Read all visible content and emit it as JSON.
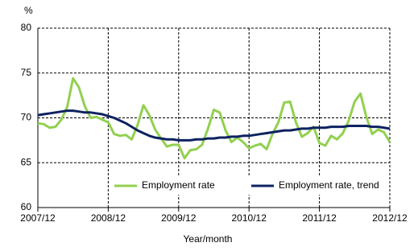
{
  "chart_data": {
    "type": "line",
    "y_label": "%",
    "x_label": "Year/month",
    "categories": [
      "2007/12",
      null,
      null,
      null,
      null,
      null,
      null,
      null,
      null,
      null,
      null,
      null,
      "2008/12",
      null,
      null,
      null,
      null,
      null,
      null,
      null,
      null,
      null,
      null,
      null,
      "2009/12",
      null,
      null,
      null,
      null,
      null,
      null,
      null,
      null,
      null,
      null,
      null,
      "2010/12",
      null,
      null,
      null,
      null,
      null,
      null,
      null,
      null,
      null,
      null,
      null,
      "2011/12",
      null,
      null,
      null,
      null,
      null,
      null,
      null,
      null,
      null,
      null,
      null,
      "2012/12"
    ],
    "series": [
      {
        "name": "Employment rate",
        "color": "#92d050",
        "values": [
          69.4,
          69.3,
          68.9,
          69.0,
          69.8,
          71.2,
          74.4,
          73.4,
          71.3,
          70.0,
          70.1,
          69.8,
          69.5,
          68.2,
          68.0,
          68.1,
          67.6,
          69.2,
          71.4,
          70.3,
          68.7,
          67.7,
          66.8,
          67.0,
          67.0,
          65.5,
          66.4,
          66.5,
          67.0,
          68.8,
          70.9,
          70.6,
          68.6,
          67.3,
          67.8,
          67.3,
          66.6,
          66.9,
          67.1,
          66.5,
          68.2,
          69.5,
          71.7,
          71.8,
          69.5,
          67.9,
          68.3,
          69.0,
          67.2,
          66.9,
          68.0,
          67.6,
          68.3,
          69.7,
          71.8,
          72.7,
          70.1,
          68.2,
          68.7,
          68.4,
          67.3
        ]
      },
      {
        "name": "Employment rate, trend",
        "color": "#0d2260",
        "values": [
          70.3,
          70.4,
          70.5,
          70.6,
          70.7,
          70.8,
          70.8,
          70.7,
          70.6,
          70.6,
          70.5,
          70.4,
          70.2,
          70.0,
          69.7,
          69.4,
          69.0,
          68.6,
          68.3,
          68.0,
          67.8,
          67.7,
          67.6,
          67.6,
          67.5,
          67.5,
          67.5,
          67.6,
          67.6,
          67.7,
          67.7,
          67.8,
          67.8,
          67.9,
          67.9,
          68.0,
          68.0,
          68.1,
          68.2,
          68.3,
          68.4,
          68.5,
          68.6,
          68.6,
          68.7,
          68.8,
          68.8,
          68.9,
          68.9,
          68.9,
          69.0,
          69.0,
          69.0,
          69.1,
          69.1,
          69.1,
          69.1,
          69.0,
          69.0,
          68.9,
          68.8
        ]
      }
    ],
    "ylim": [
      60,
      80
    ],
    "yticks": [
      60,
      65,
      70,
      75,
      80
    ],
    "grid": true,
    "legend": "bottom"
  }
}
